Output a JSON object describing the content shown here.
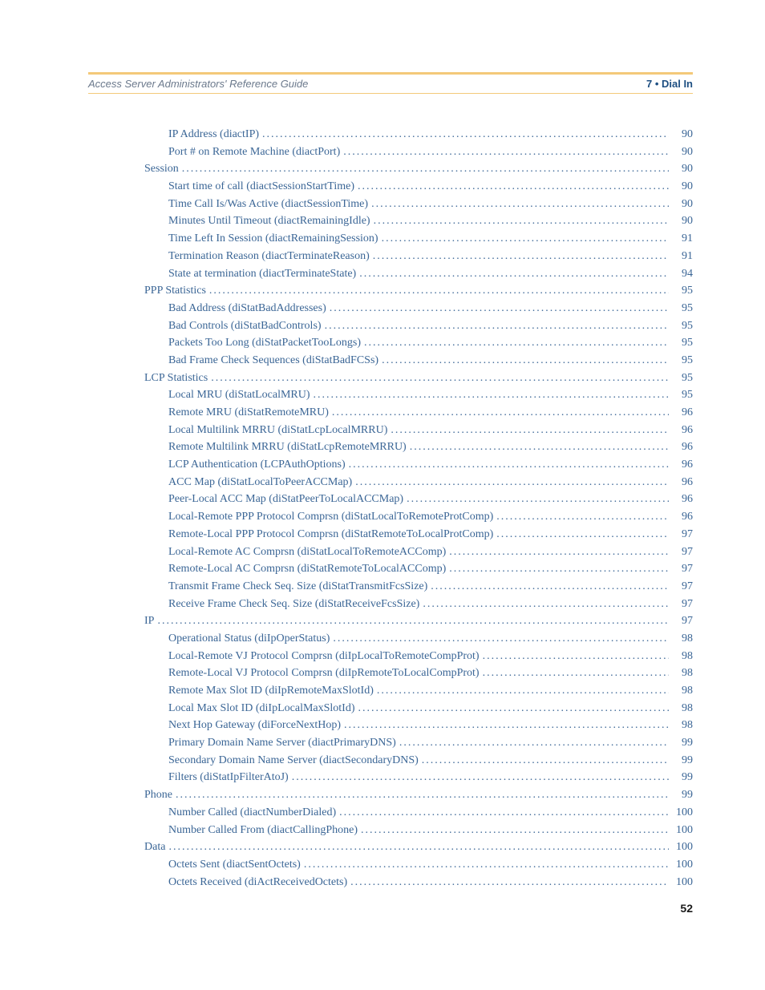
{
  "header": {
    "left": "Access Server Administrators' Reference Guide",
    "right": "7 • Dial In"
  },
  "page_number": "52",
  "colors": {
    "accent_border": "#f4c979",
    "link_text": "#3b6696",
    "header_left": "#6b798c",
    "header_right": "#1e4f82",
    "page_num": "#1a1a1a",
    "background": "#ffffff"
  },
  "typography": {
    "body_font": "Times New Roman",
    "header_font": "Helvetica",
    "body_size_pt": 11,
    "header_size_pt": 10
  },
  "toc": [
    {
      "level": 2,
      "label": "IP Address (diactIP)",
      "page": "90"
    },
    {
      "level": 2,
      "label": "Port # on Remote Machine (diactPort)",
      "page": "90"
    },
    {
      "level": 1,
      "label": "Session",
      "page": "90"
    },
    {
      "level": 2,
      "label": "Start time of call (diactSessionStartTime)",
      "page": "90"
    },
    {
      "level": 2,
      "label": "Time Call Is/Was Active (diactSessionTime)",
      "page": "90"
    },
    {
      "level": 2,
      "label": "Minutes Until Timeout (diactRemainingIdle)",
      "page": "90"
    },
    {
      "level": 2,
      "label": "Time Left In Session (diactRemainingSession)",
      "page": "91"
    },
    {
      "level": 2,
      "label": "Termination Reason (diactTerminateReason)",
      "page": "91"
    },
    {
      "level": 2,
      "label": "State at termination (diactTerminateState)",
      "page": "94"
    },
    {
      "level": 1,
      "label": "PPP Statistics",
      "page": "95"
    },
    {
      "level": 2,
      "label": "Bad Address (diStatBadAddresses)",
      "page": "95"
    },
    {
      "level": 2,
      "label": "Bad Controls (diStatBadControls)",
      "page": "95"
    },
    {
      "level": 2,
      "label": "Packets Too Long (diStatPacketTooLongs)",
      "page": "95"
    },
    {
      "level": 2,
      "label": "Bad Frame Check Sequences (diStatBadFCSs)",
      "page": "95"
    },
    {
      "level": 1,
      "label": "LCP Statistics",
      "page": "95"
    },
    {
      "level": 2,
      "label": "Local MRU (diStatLocalMRU)",
      "page": "95"
    },
    {
      "level": 2,
      "label": "Remote MRU (diStatRemoteMRU)",
      "page": "96"
    },
    {
      "level": 2,
      "label": "Local Multilink MRRU (diStatLcpLocalMRRU)",
      "page": "96"
    },
    {
      "level": 2,
      "label": "Remote Multilink MRRU (diStatLcpRemoteMRRU)",
      "page": "96"
    },
    {
      "level": 2,
      "label": "LCP Authentication (LCPAuthOptions)",
      "page": "96"
    },
    {
      "level": 2,
      "label": "ACC Map (diStatLocalToPeerACCMap)",
      "page": "96"
    },
    {
      "level": 2,
      "label": "Peer-Local ACC Map (diStatPeerToLocalACCMap)",
      "page": "96"
    },
    {
      "level": 2,
      "label": "Local-Remote PPP Protocol Comprsn (diStatLocalToRemoteProtComp)",
      "page": "96"
    },
    {
      "level": 2,
      "label": "Remote-Local PPP Protocol Comprsn (diStatRemoteToLocalProtComp)",
      "page": "97"
    },
    {
      "level": 2,
      "label": "Local-Remote AC Comprsn (diStatLocalToRemoteACComp)",
      "page": "97"
    },
    {
      "level": 2,
      "label": "Remote-Local AC Comprsn (diStatRemoteToLocalACComp)",
      "page": "97"
    },
    {
      "level": 2,
      "label": "Transmit Frame Check Seq. Size (diStatTransmitFcsSize)",
      "page": "97"
    },
    {
      "level": 2,
      "label": "Receive Frame Check Seq. Size (diStatReceiveFcsSize)",
      "page": "97"
    },
    {
      "level": 1,
      "label": "IP",
      "page": "97"
    },
    {
      "level": 2,
      "label": "Operational Status (diIpOperStatus)",
      "page": "98"
    },
    {
      "level": 2,
      "label": "Local-Remote VJ Protocol Comprsn (diIpLocalToRemoteCompProt)",
      "page": "98"
    },
    {
      "level": 2,
      "label": "Remote-Local VJ Protocol Comprsn (diIpRemoteToLocalCompProt)",
      "page": "98"
    },
    {
      "level": 2,
      "label": "Remote Max Slot ID (diIpRemoteMaxSlotId)",
      "page": "98"
    },
    {
      "level": 2,
      "label": "Local Max Slot ID (diIpLocalMaxSlotId)",
      "page": "98"
    },
    {
      "level": 2,
      "label": "Next Hop Gateway (diForceNextHop)",
      "page": "98"
    },
    {
      "level": 2,
      "label": "Primary Domain Name Server (diactPrimaryDNS)",
      "page": "99"
    },
    {
      "level": 2,
      "label": "Secondary Domain Name Server (diactSecondaryDNS)",
      "page": "99"
    },
    {
      "level": 2,
      "label": "Filters (diStatIpFilterAtoJ)",
      "page": "99"
    },
    {
      "level": 1,
      "label": "Phone",
      "page": "99"
    },
    {
      "level": 2,
      "label": "Number Called (diactNumberDialed)",
      "page": "100"
    },
    {
      "level": 2,
      "label": "Number Called From (diactCallingPhone)",
      "page": "100"
    },
    {
      "level": 1,
      "label": "Data",
      "page": "100"
    },
    {
      "level": 2,
      "label": "Octets Sent (diactSentOctets)",
      "page": "100"
    },
    {
      "level": 2,
      "label": "Octets Received (diActReceivedOctets)",
      "page": "100"
    }
  ]
}
